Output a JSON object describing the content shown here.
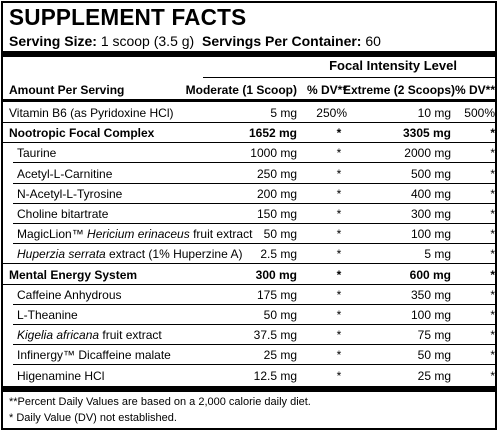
{
  "title": "SUPPLEMENT FACTS",
  "serving": {
    "size_label": "Serving Size:",
    "size_value": "1 scoop (3.5 g)",
    "per_container_label": "Servings Per Container:",
    "per_container_value": "60"
  },
  "header": {
    "group_label": "Focal Intensity Level",
    "amount_label": "Amount Per Serving",
    "moderate_label": "Moderate (1 Scoop)",
    "dv1_label": "% DV**",
    "extreme_label": "Extreme (2 Scoops)",
    "dv2_label": "% DV**"
  },
  "rows": [
    {
      "name": "Vitamin B6 (as Pyridoxine HCl)",
      "moderate": "5 mg",
      "dv1": "250%",
      "extreme": "10 mg",
      "dv2": "500%",
      "bold": false,
      "indent": false
    },
    {
      "name": "Nootropic Focal Complex",
      "moderate": "1652 mg",
      "dv1": "*",
      "extreme": "3305 mg",
      "dv2": "*",
      "bold": true,
      "indent": false
    },
    {
      "name": "Taurine",
      "moderate": "1000 mg",
      "dv1": "*",
      "extreme": "2000 mg",
      "dv2": "*",
      "bold": false,
      "indent": true
    },
    {
      "name": "Acetyl-L-Carnitine",
      "moderate": "250 mg",
      "dv1": "*",
      "extreme": "500 mg",
      "dv2": "*",
      "bold": false,
      "indent": true
    },
    {
      "name": "N-Acetyl-L-Tyrosine",
      "moderate": "200 mg",
      "dv1": "*",
      "extreme": "400 mg",
      "dv2": "*",
      "bold": false,
      "indent": true
    },
    {
      "name": "Choline bitartrate",
      "moderate": "150 mg",
      "dv1": "*",
      "extreme": "300 mg",
      "dv2": "*",
      "bold": false,
      "indent": true
    },
    {
      "name_pre": "MagicLion™ ",
      "name_italic": "Hericium erinaceus",
      "name_post": " fruit extract",
      "moderate": "50 mg",
      "dv1": "*",
      "extreme": "100 mg",
      "dv2": "*",
      "bold": false,
      "indent": true
    },
    {
      "name_pre": "",
      "name_italic": "Huperzia serrata",
      "name_post": " extract (1% Huperzine A)",
      "moderate": "2.5 mg",
      "dv1": "*",
      "extreme": "5 mg",
      "dv2": "*",
      "bold": false,
      "indent": true
    },
    {
      "name": "Mental Energy System",
      "moderate": "300 mg",
      "dv1": "*",
      "extreme": "600 mg",
      "dv2": "*",
      "bold": true,
      "indent": false
    },
    {
      "name": "Caffeine Anhydrous",
      "moderate": "175 mg",
      "dv1": "*",
      "extreme": "350 mg",
      "dv2": "*",
      "bold": false,
      "indent": true
    },
    {
      "name": "L-Theanine",
      "moderate": "50 mg",
      "dv1": "*",
      "extreme": "100 mg",
      "dv2": "*",
      "bold": false,
      "indent": true
    },
    {
      "name_pre": "",
      "name_italic": "Kigelia africana",
      "name_post": " fruit extract",
      "moderate": "37.5 mg",
      "dv1": "*",
      "extreme": "75 mg",
      "dv2": "*",
      "bold": false,
      "indent": true
    },
    {
      "name": "Infinergy™ Dicaffeine malate",
      "moderate": "25 mg",
      "dv1": "*",
      "extreme": "50 mg",
      "dv2": "*",
      "bold": false,
      "indent": true
    },
    {
      "name": "Higenamine HCl",
      "moderate": "12.5 mg",
      "dv1": "*",
      "extreme": "25 mg",
      "dv2": "*",
      "bold": false,
      "indent": true
    }
  ],
  "footnotes": [
    "**Percent Daily Values are based on a 2,000 calorie daily diet.",
    "* Daily Value (DV) not established."
  ]
}
